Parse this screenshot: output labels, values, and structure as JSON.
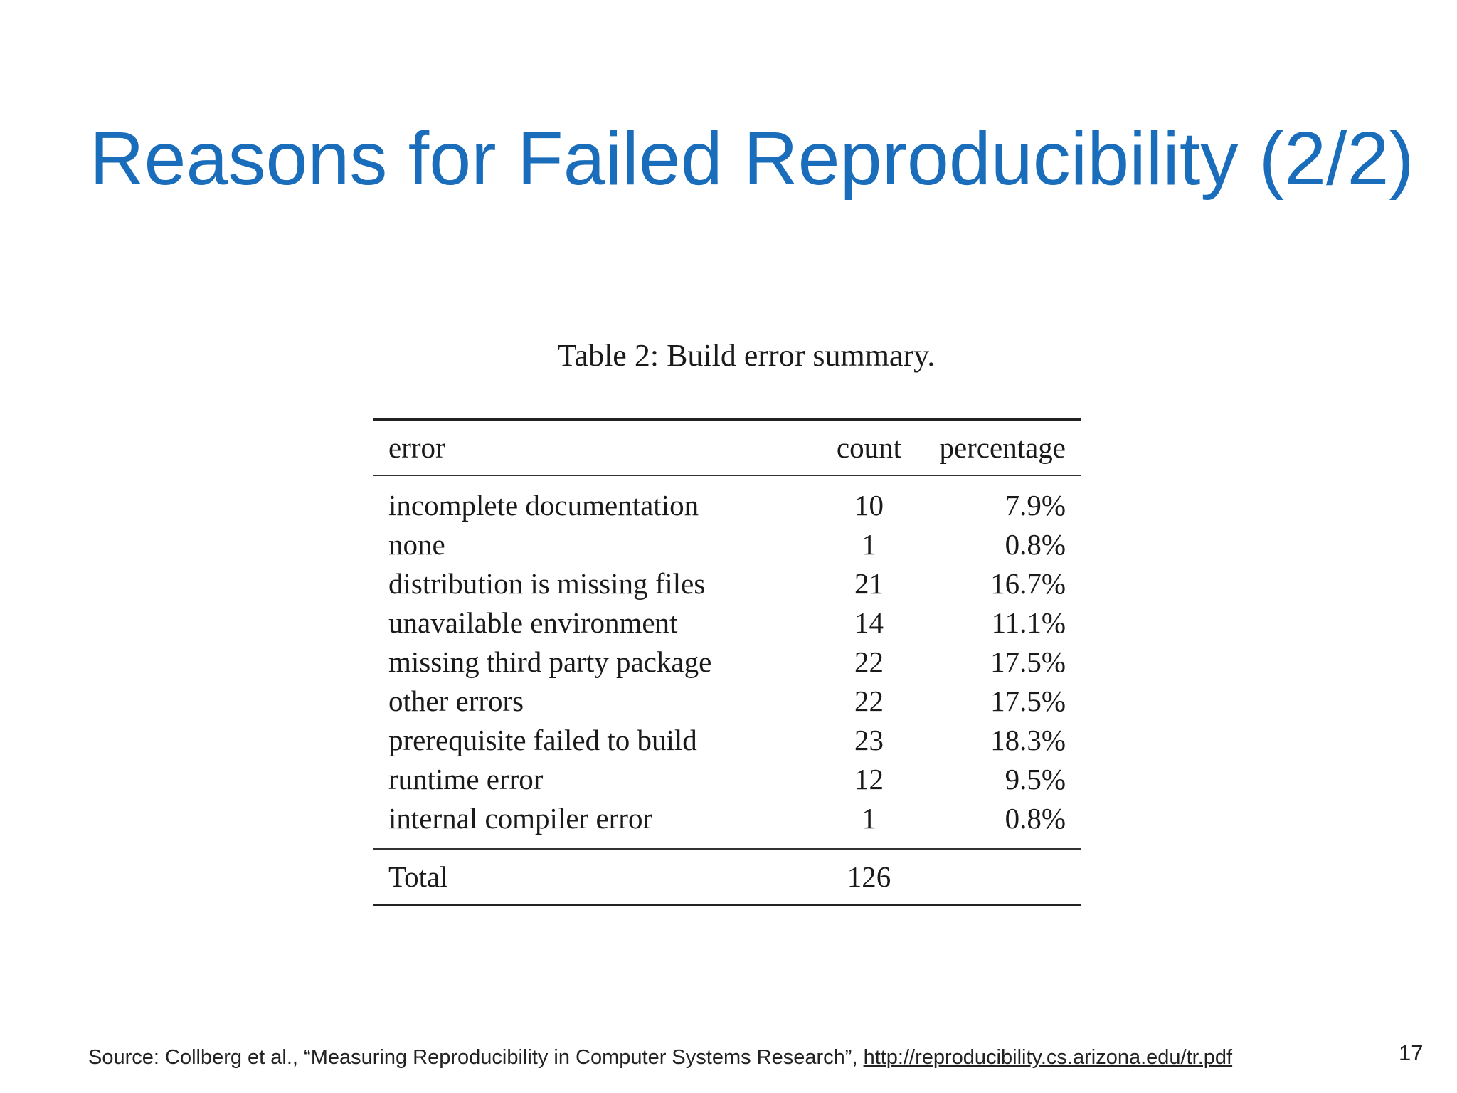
{
  "slide": {
    "title": "Reasons for Failed Reproducibility (2/2)",
    "page_number": "17"
  },
  "table": {
    "caption": "Table 2:  Build error summary.",
    "headers": {
      "error": "error",
      "count": "count",
      "percentage": "percentage"
    },
    "rows": [
      {
        "error": "incomplete documentation",
        "count": "10",
        "percentage": "7.9%"
      },
      {
        "error": "none",
        "count": "1",
        "percentage": "0.8%"
      },
      {
        "error": "distribution is missing files",
        "count": "21",
        "percentage": "16.7%"
      },
      {
        "error": "unavailable environment",
        "count": "14",
        "percentage": "11.1%"
      },
      {
        "error": "missing third party package",
        "count": "22",
        "percentage": "17.5%"
      },
      {
        "error": "other errors",
        "count": "22",
        "percentage": "17.5%"
      },
      {
        "error": "prerequisite failed to build",
        "count": "23",
        "percentage": "18.3%"
      },
      {
        "error": "runtime error",
        "count": "12",
        "percentage": "9.5%"
      },
      {
        "error": "internal compiler error",
        "count": "1",
        "percentage": "0.8%"
      }
    ],
    "footer": {
      "label": "Total",
      "count": "126"
    }
  },
  "source": {
    "text": "Source: Collberg et al., “Measuring Reproducibility in Computer Systems Research”, ",
    "link": "http://reproducibility.cs.arizona.edu/tr.pdf"
  }
}
